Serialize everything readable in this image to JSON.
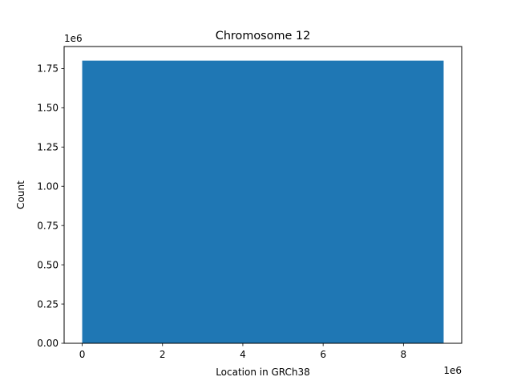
{
  "chart_data": {
    "type": "bar",
    "title": "Chromosome 12",
    "xlabel": "Location in GRCh38",
    "ylabel": "Count",
    "x_offset_label": "1e6",
    "y_offset_label": "1e6",
    "xlim": [
      -0.45,
      9.45
    ],
    "ylim": [
      0,
      1.89
    ],
    "x_ticks": [
      0,
      2,
      4,
      6,
      8
    ],
    "x_tick_labels": [
      "0",
      "2",
      "4",
      "6",
      "8"
    ],
    "y_ticks": [
      0,
      0.25,
      0.5,
      0.75,
      1.0,
      1.25,
      1.5,
      1.75
    ],
    "y_tick_labels": [
      "0.00",
      "0.25",
      "0.50",
      "0.75",
      "1.00",
      "1.25",
      "1.50",
      "1.75"
    ],
    "bins": [
      {
        "x0": 0,
        "x1": 9,
        "value": 1.8
      }
    ],
    "bar_color": "#1f77b4",
    "grid": false,
    "legend": "none"
  }
}
